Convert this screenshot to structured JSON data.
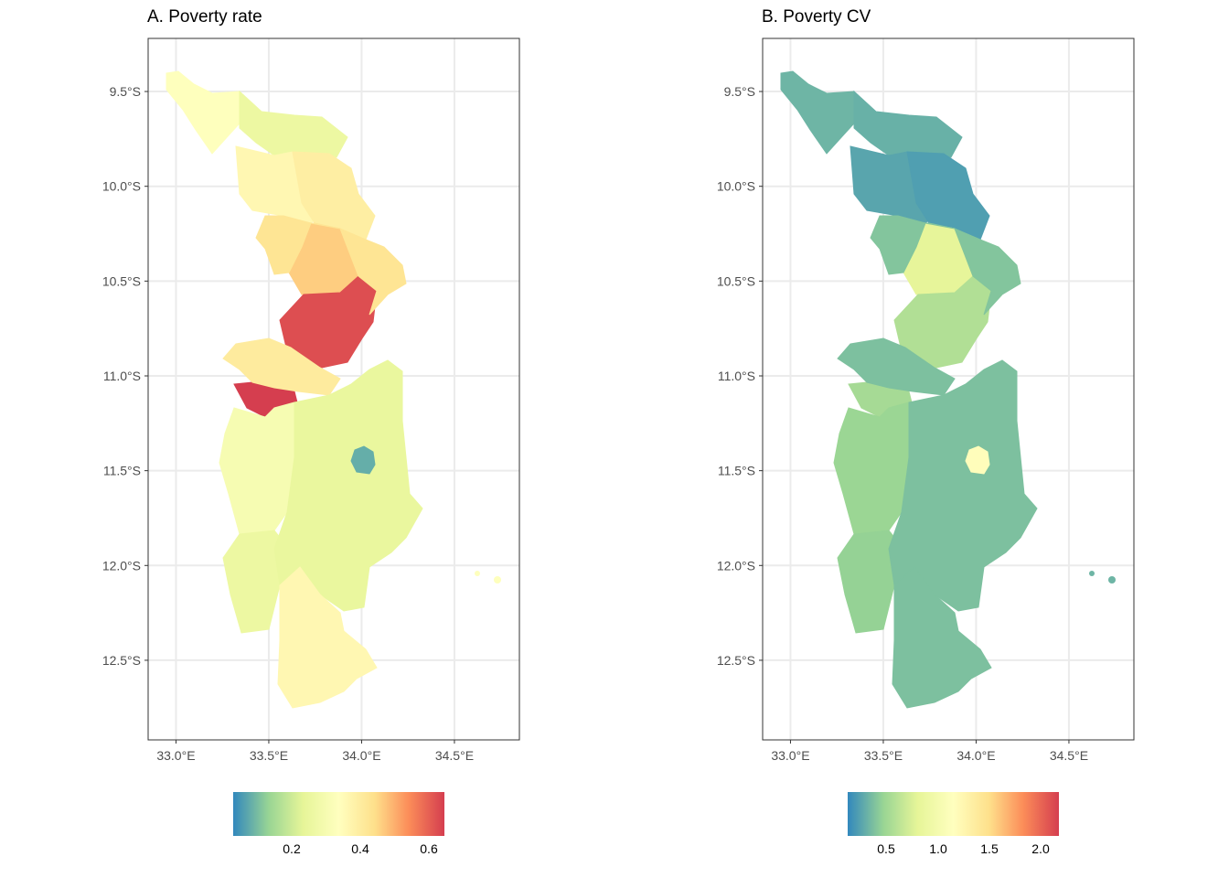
{
  "figure": {
    "panels": [
      {
        "id": "A",
        "title": "A. Poverty rate",
        "y_ticks": [
          "9.5°S",
          "10.0°S",
          "10.5°S",
          "11.0°S",
          "11.5°S",
          "12.0°S",
          "12.5°S"
        ],
        "x_ticks": [
          "33.0°E",
          "33.5°E",
          "34.0°E",
          "34.5°E"
        ],
        "legend_ticks": [
          "0.2",
          "0.4",
          "0.6"
        ],
        "legend_range": [
          0.03,
          0.64
        ]
      },
      {
        "id": "B",
        "title": "B. Poverty CV",
        "y_ticks": [
          "9.5°S",
          "10.0°S",
          "10.5°S",
          "11.0°S",
          "11.5°S",
          "12.0°S",
          "12.5°S"
        ],
        "x_ticks": [
          "33.0°E",
          "33.5°E",
          "34.0°E",
          "34.5°E"
        ],
        "legend_ticks": [
          "0.5",
          "1.0",
          "1.5",
          "2.0"
        ],
        "legend_range": [
          0.15,
          2.2
        ]
      }
    ],
    "palette": [
      "#3288bd",
      "#99d594",
      "#e6f598",
      "#ffffbf",
      "#fee08b",
      "#fc8d59",
      "#d53e4f"
    ],
    "axis_color": "#4d4d4d",
    "grid_color": "#ebebeb"
  },
  "chart_data": [
    {
      "type": "choropleth",
      "title": "A. Poverty rate",
      "x_ticks": [
        33.0,
        33.5,
        34.0,
        34.5
      ],
      "y_ticks": [
        -9.5,
        -10.0,
        -10.5,
        -11.0,
        -11.5,
        -12.0,
        -12.5
      ],
      "xlim": [
        32.85,
        34.85
      ],
      "ylim": [
        -12.92,
        -9.22
      ],
      "legend_ticks": [
        0.2,
        0.4,
        0.6
      ],
      "color_range": [
        0.03,
        0.64
      ],
      "regions": [
        {
          "value": 0.33
        },
        {
          "value": 0.26
        },
        {
          "value": 0.36
        },
        {
          "value": 0.39
        },
        {
          "value": 0.46
        },
        {
          "value": 0.62
        },
        {
          "value": 0.64
        },
        {
          "value": 0.4
        },
        {
          "value": 0.42
        },
        {
          "value": 0.3
        },
        {
          "value": 0.26
        },
        {
          "value": 0.25
        },
        {
          "value": 0.36
        },
        {
          "value": 0.08
        }
      ]
    },
    {
      "type": "choropleth",
      "title": "B. Poverty CV",
      "x_ticks": [
        33.0,
        33.5,
        34.0,
        34.5
      ],
      "y_ticks": [
        -9.5,
        -10.0,
        -10.5,
        -11.0,
        -11.5,
        -12.0,
        -12.5
      ],
      "xlim": [
        32.85,
        34.85
      ],
      "ylim": [
        -12.92,
        -9.22
      ],
      "legend_ticks": [
        0.5,
        1.0,
        1.5,
        2.0
      ],
      "color_range": [
        0.15,
        2.2
      ],
      "regions": [
        {
          "value": 0.35
        },
        {
          "value": 0.33
        },
        {
          "value": 0.28
        },
        {
          "value": 0.25
        },
        {
          "value": 0.85
        },
        {
          "value": 0.6
        },
        {
          "value": 0.55
        },
        {
          "value": 0.4
        },
        {
          "value": 0.42
        },
        {
          "value": 0.5
        },
        {
          "value": 0.48
        },
        {
          "value": 0.4
        },
        {
          "value": 0.4
        },
        {
          "value": 1.2
        }
      ]
    }
  ]
}
